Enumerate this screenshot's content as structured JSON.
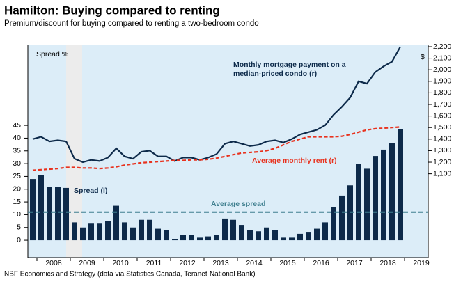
{
  "chart_data": {
    "type": "bar",
    "title": "Hamilton: Buying compared to renting",
    "subtitle": "Premium/discount for buying compared to renting a two-bedroom condo",
    "source": "NBF Economics and Strategy (data via Statistics Canada, Teranet-National Bank)",
    "y_axis_label": "Spread %",
    "y2_axis_label": "$",
    "annotations": [
      "Monthly mortgage payment on a",
      "median-priced condo (r)",
      "Average monthly rent (r)",
      "Spread (l)",
      "Average spread"
    ],
    "year_labels": [
      "2008",
      "2009",
      "2010",
      "2011",
      "2012",
      "2013",
      "2014",
      "2015",
      "2016",
      "2017",
      "2018",
      "2019"
    ],
    "ylim": [
      -6.8,
      76.4
    ],
    "yticks": [
      0,
      5,
      10,
      15,
      20,
      25,
      30,
      35,
      40,
      45
    ],
    "y2lim": [
      375,
      2212
    ],
    "y2ticks": [
      {
        "value": 1100,
        "label": "1,100"
      },
      {
        "value": 1200,
        "label": "1,200"
      },
      {
        "value": 1300,
        "label": "1,300"
      },
      {
        "value": 1400,
        "label": "1,400"
      },
      {
        "value": 1500,
        "label": "1,500"
      },
      {
        "value": 1600,
        "label": "1,600"
      },
      {
        "value": 1700,
        "label": "1,700"
      },
      {
        "value": 1800,
        "label": "1,800"
      },
      {
        "value": 1900,
        "label": "1,900"
      },
      {
        "value": 2000,
        "label": "2,000"
      },
      {
        "value": 2100,
        "label": "2,100"
      },
      {
        "value": 2200,
        "label": "2,200"
      }
    ],
    "average_spread": 11,
    "series": [
      {
        "name": "Spread (l)",
        "color": "#0d2a4a",
        "type": "bar",
        "values": [
          24,
          25.5,
          21,
          21,
          20.5,
          7,
          5,
          6.5,
          6.5,
          7.5,
          13.5,
          7,
          5,
          8,
          8,
          4.5,
          4,
          0.3,
          2,
          2,
          1,
          1.5,
          2,
          8.5,
          8,
          6,
          4,
          3.5,
          5,
          4,
          1,
          1,
          2.5,
          3,
          4.5,
          7,
          13,
          17.5,
          21.5,
          30,
          28,
          33,
          35.5,
          38,
          43.5
        ]
      },
      {
        "name": "Monthly mortgage payment on a median-priced condo (r)",
        "color": "#0d2a4a",
        "type": "line",
        "axis": "y2",
        "values": [
          1400,
          1420,
          1380,
          1390,
          1380,
          1230,
          1200,
          1220,
          1210,
          1240,
          1320,
          1250,
          1230,
          1290,
          1300,
          1250,
          1250,
          1210,
          1240,
          1240,
          1220,
          1240,
          1270,
          1360,
          1380,
          1360,
          1340,
          1350,
          1380,
          1390,
          1370,
          1400,
          1440,
          1460,
          1480,
          1520,
          1610,
          1680,
          1760,
          1900,
          1880,
          1980,
          2030,
          2070,
          2200
        ]
      },
      {
        "name": "Average monthly rent (r)",
        "color": "#e8321e",
        "type": "dashed",
        "axis": "y2",
        "values": [
          1130,
          1135,
          1140,
          1145,
          1155,
          1155,
          1150,
          1150,
          1145,
          1150,
          1160,
          1175,
          1185,
          1195,
          1200,
          1205,
          1210,
          1215,
          1215,
          1220,
          1220,
          1225,
          1235,
          1250,
          1265,
          1280,
          1285,
          1290,
          1300,
          1320,
          1350,
          1380,
          1400,
          1420,
          1420,
          1420,
          1420,
          1425,
          1440,
          1460,
          1480,
          1490,
          1495,
          1500,
          1505
        ]
      }
    ],
    "average_color": "#3f7f8f"
  }
}
